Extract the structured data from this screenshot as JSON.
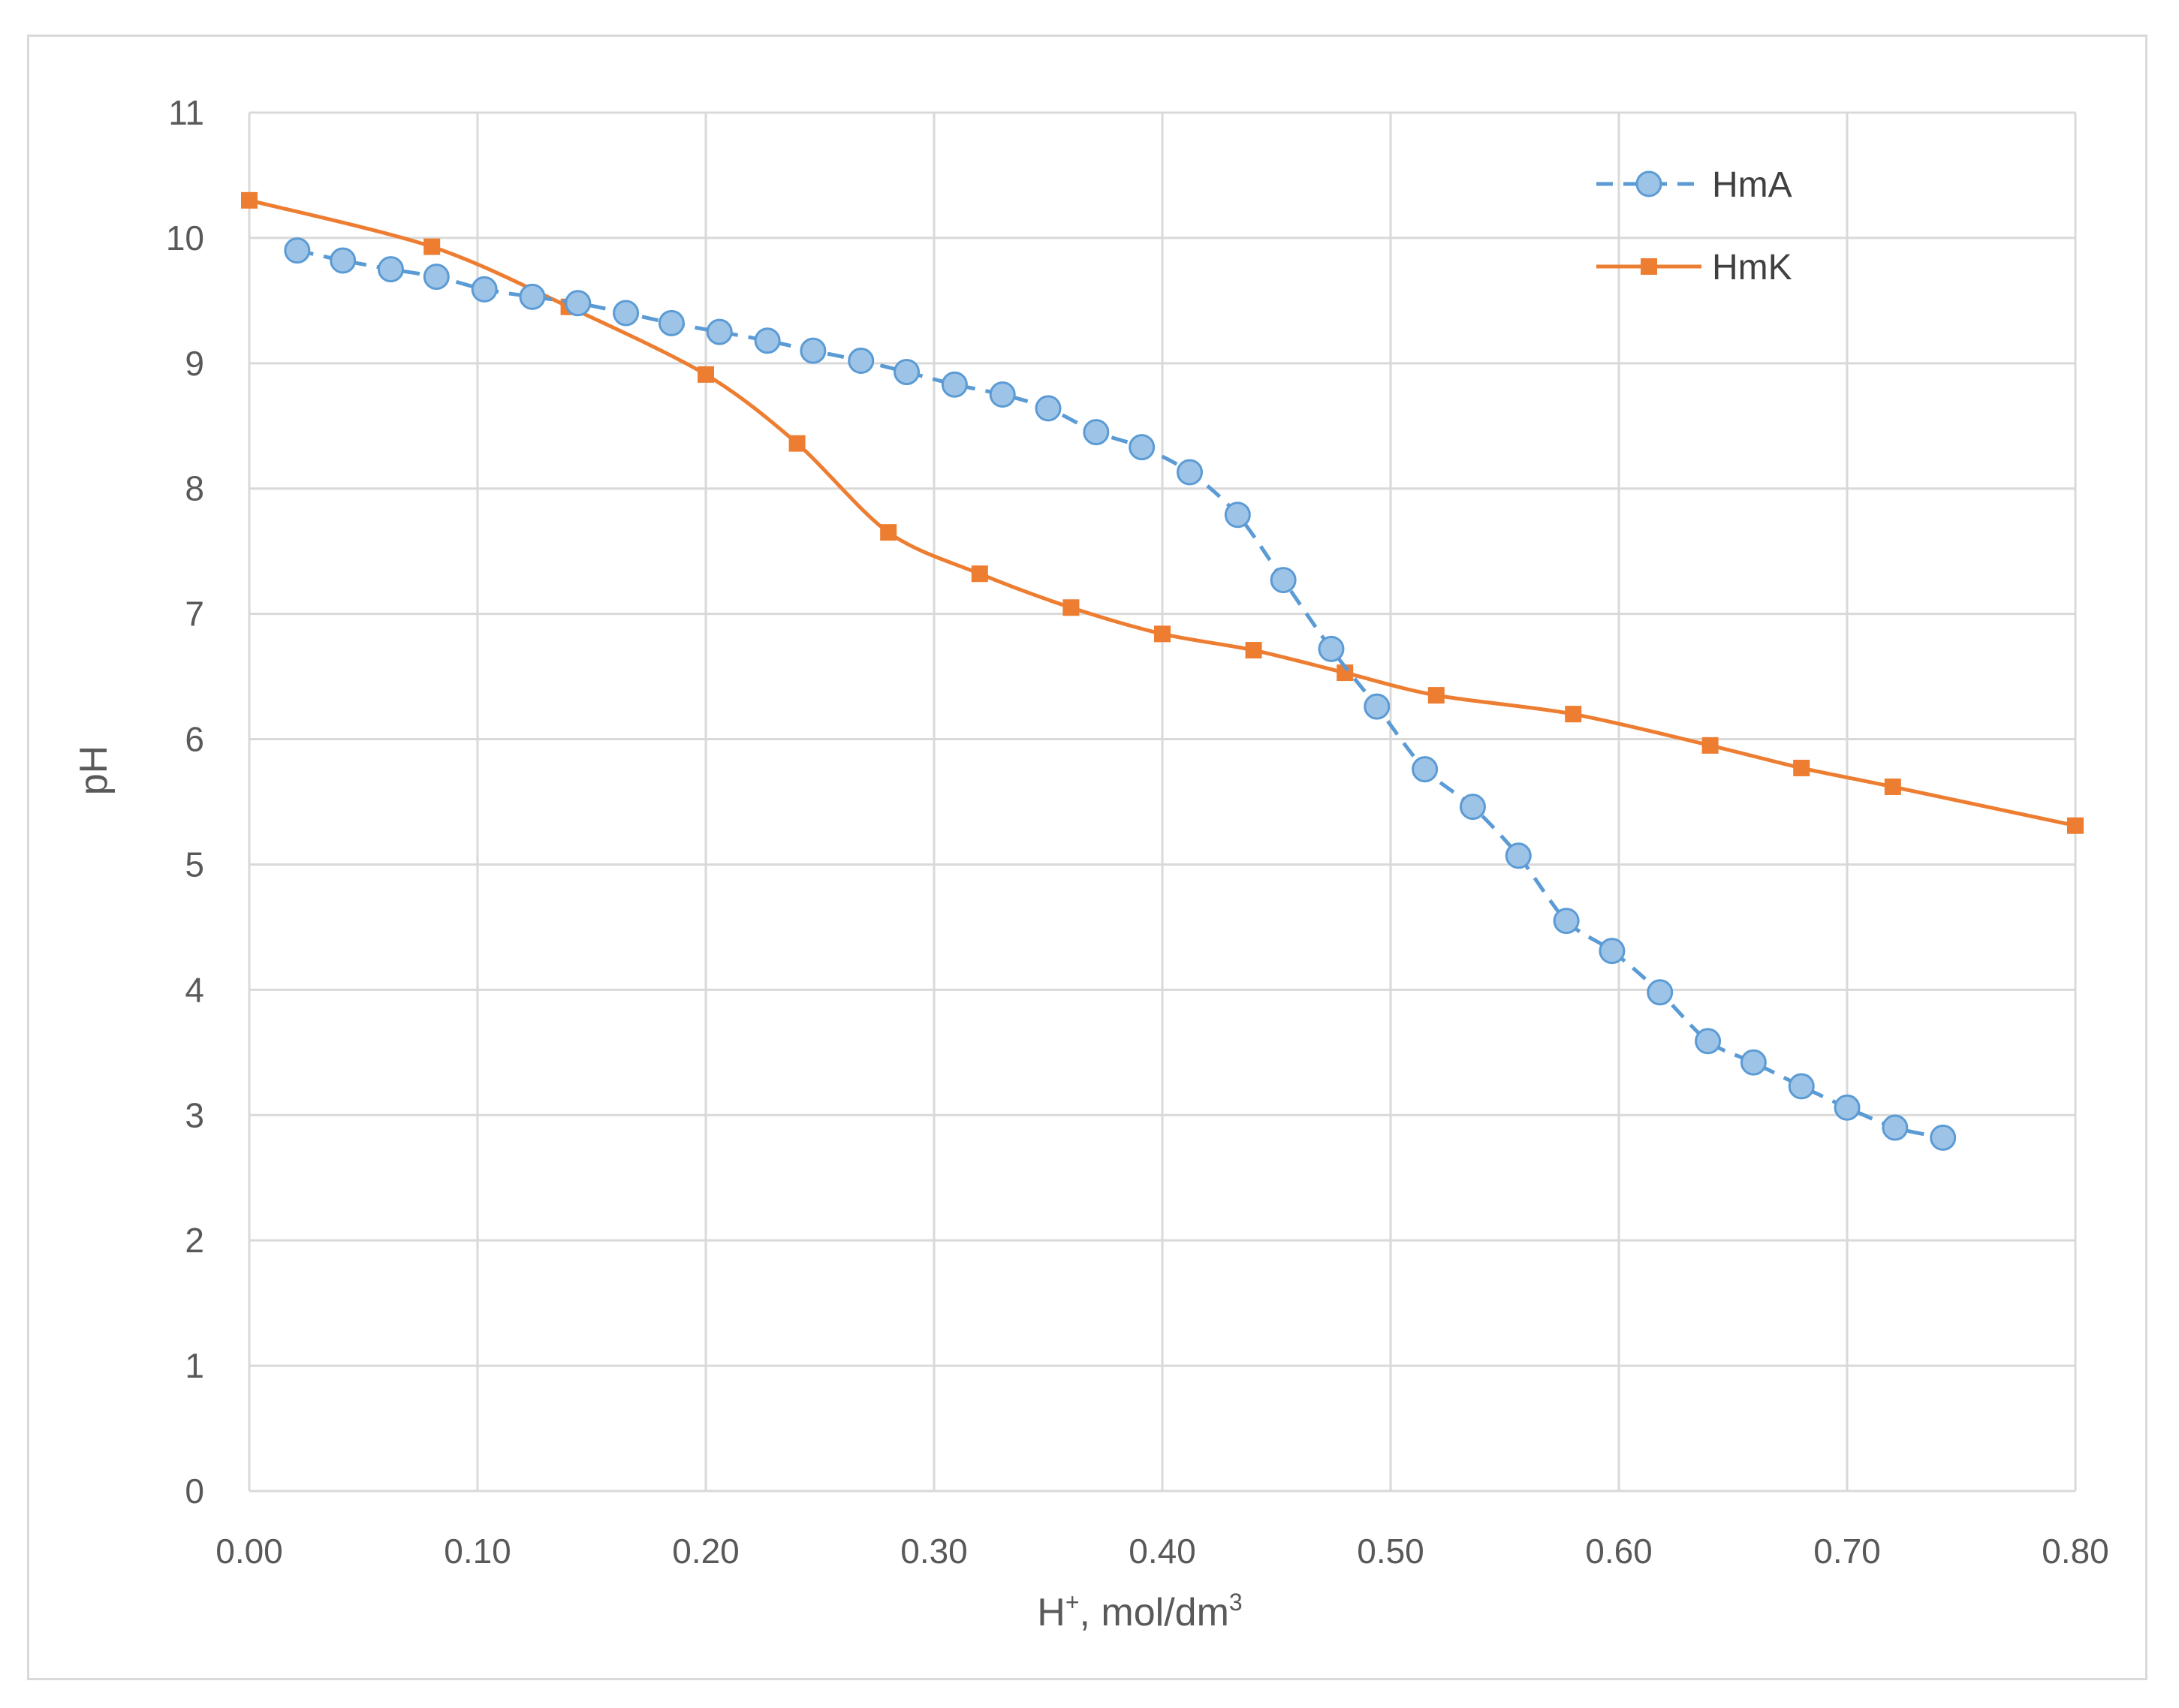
{
  "colors": {
    "hma_fill": "#9dc3e6",
    "hma_stroke": "#5b9bd5",
    "hmk": "#ed7d31",
    "grid": "#d9d9d9",
    "text": "#595959"
  },
  "chart_data": {
    "type": "line",
    "title": "",
    "xlabel": "H⁺, mol/dm³",
    "xlabel_base": "H",
    "xlabel_sup": "+",
    "xlabel_mid": ", mol/dm",
    "xlabel_sup2": "3",
    "ylabel": "pH",
    "xlim": [
      0,
      0.8
    ],
    "ylim": [
      0,
      11
    ],
    "grid": true,
    "legend_position": "top-right",
    "x_ticks": [
      "0.00",
      "0.10",
      "0.20",
      "0.30",
      "0.40",
      "0.50",
      "0.60",
      "0.70",
      "0.80"
    ],
    "y_ticks": [
      "0",
      "1",
      "2",
      "3",
      "4",
      "5",
      "6",
      "7",
      "8",
      "9",
      "10",
      "11"
    ],
    "series": [
      {
        "name": "HmA",
        "style": "dashed-circle",
        "x": [
          0.021,
          0.041,
          0.062,
          0.082,
          0.103,
          0.124,
          0.144,
          0.165,
          0.185,
          0.206,
          0.227,
          0.247,
          0.268,
          0.288,
          0.309,
          0.33,
          0.35,
          0.371,
          0.391,
          0.412,
          0.433,
          0.453,
          0.474,
          0.494,
          0.515,
          0.536,
          0.556,
          0.577,
          0.597,
          0.618,
          0.639,
          0.659,
          0.68,
          0.7,
          0.721,
          0.742
        ],
        "y": [
          9.9,
          9.82,
          9.75,
          9.69,
          9.59,
          9.53,
          9.48,
          9.4,
          9.32,
          9.25,
          9.18,
          9.1,
          9.02,
          8.93,
          8.83,
          8.75,
          8.64,
          8.45,
          8.33,
          8.13,
          7.79,
          7.27,
          6.72,
          6.26,
          5.76,
          5.46,
          5.07,
          4.55,
          4.31,
          3.98,
          3.59,
          3.42,
          3.23,
          3.06,
          2.9,
          2.82
        ]
      },
      {
        "name": "HmK",
        "style": "solid-square",
        "x": [
          0.0,
          0.08,
          0.14,
          0.2,
          0.24,
          0.28,
          0.32,
          0.36,
          0.4,
          0.44,
          0.48,
          0.52,
          0.58,
          0.64,
          0.68,
          0.72,
          0.8
        ],
        "y": [
          10.3,
          9.93,
          9.45,
          8.91,
          8.36,
          7.65,
          7.32,
          7.05,
          6.84,
          6.71,
          6.53,
          6.35,
          6.2,
          5.95,
          5.77,
          5.62,
          5.31
        ]
      }
    ]
  }
}
